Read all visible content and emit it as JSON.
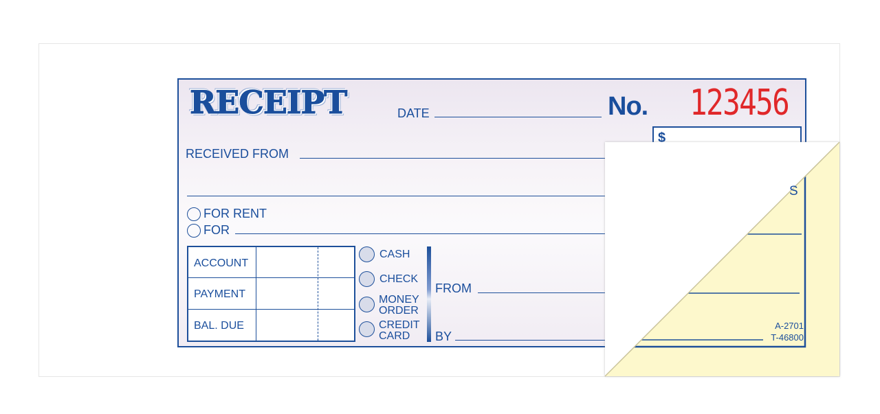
{
  "receipt": {
    "title": "RECEIPT",
    "date_label": "DATE",
    "number_label": "No.",
    "serial_number": "123456",
    "dollar_sign": "$",
    "received_from_label": "RECEIVED FROM",
    "for_rent_label": "FOR RENT",
    "for_label": "FOR",
    "table_rows": [
      "ACCOUNT",
      "PAYMENT",
      "BAL. DUE"
    ],
    "payment_methods": [
      "CASH",
      "CHECK",
      "MONEY ORDER",
      "CREDIT CARD"
    ],
    "from_label": "FROM",
    "by_label": "BY",
    "dollars_fragment": "S",
    "form_codes": [
      "A-2701",
      "T-46800"
    ]
  },
  "colors": {
    "ink": "#1d4f9a",
    "serial": "#e0282a",
    "carbon_copy": "#fdf8cc"
  }
}
